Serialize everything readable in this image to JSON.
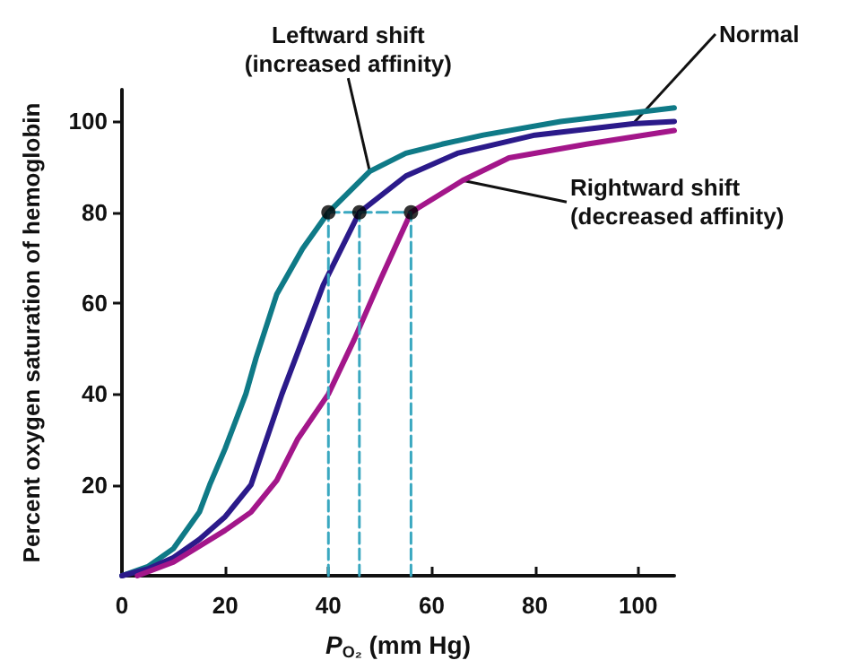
{
  "chart_data": {
    "type": "line",
    "xlabel": "P$_{O₂}$ (mm Hg)",
    "ylabel": "Percent oxygen saturation of hemoglobin",
    "xlim": [
      0,
      107
    ],
    "ylim": [
      0,
      107
    ],
    "xticks": [
      0,
      20,
      40,
      60,
      80,
      100
    ],
    "yticks": [
      20,
      40,
      60,
      80,
      100
    ],
    "grid": false,
    "legend": false,
    "marker": "none",
    "series": [
      {
        "name": "Leftward shift\n(increased affinity)",
        "color": "#0f7a87",
        "x": [
          0,
          5,
          10,
          15,
          17,
          20,
          24,
          26,
          30,
          35,
          40,
          48,
          55,
          62,
          70,
          85,
          107
        ],
        "values": [
          0,
          2,
          6,
          14,
          20,
          28,
          40,
          48,
          62,
          72,
          80,
          89,
          93,
          95,
          97,
          100,
          103
        ]
      },
      {
        "name": "Normal",
        "color": "#2b1a8a",
        "x": [
          0,
          5,
          10,
          15,
          20,
          25,
          31,
          35,
          39,
          46,
          55,
          65,
          80,
          99,
          107
        ],
        "values": [
          0,
          1.5,
          4,
          8,
          13,
          20,
          40,
          52,
          64,
          80,
          88,
          93,
          97,
          99.5,
          100
        ]
      },
      {
        "name": "Rightward shift\n(decreased affinity)",
        "color": "#a3168a",
        "x": [
          3,
          10,
          20,
          25,
          30,
          34,
          40,
          45,
          50,
          56,
          66,
          75,
          90,
          107
        ],
        "values": [
          0,
          3,
          10,
          14,
          21,
          30,
          40,
          52,
          65,
          80,
          87,
          92,
          95,
          98
        ]
      },
      {
        "type": "line",
        "color": "#3aa8c0",
        "line_style": "dashed",
        "x": [
          40,
          40,
          null,
          46,
          46,
          null,
          56,
          56,
          null,
          40,
          56
        ],
        "values": [
          0,
          80,
          null,
          0,
          80,
          null,
          0,
          80,
          null,
          80,
          80
        ]
      },
      {
        "type": "scatter",
        "color": "#000000",
        "marker": "circle",
        "x": [
          40,
          46,
          56
        ],
        "values": [
          80,
          80,
          80
        ]
      }
    ]
  }
}
